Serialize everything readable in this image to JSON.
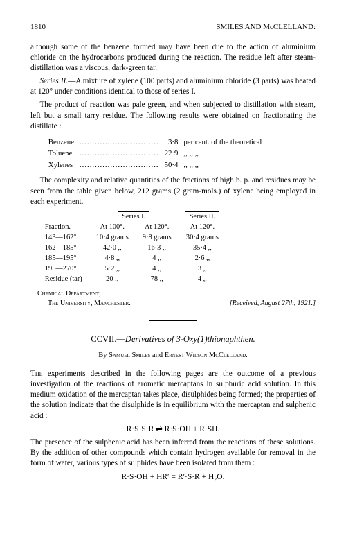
{
  "page_number": "1810",
  "running_head": "SMILES AND McCLELLAND:",
  "para1": "although some of the benzene formed may have been due to the action of aluminium chloride on the hydrocarbons produced during the reaction. The residue left after steam-distillation was a viscous, dark-green tar.",
  "para2_prefix_italic": "Series II.",
  "para2_rest": "—A mixture of xylene (100 parts) and aluminium chloride (3 parts) was heated at 120° under conditions identical to those of series I.",
  "para3": "The product of reaction was pale green, and when subjected to distillation with steam, left but a small tarry residue. The following results were obtained on fractionating the distillate :",
  "distillate": {
    "rows": [
      {
        "label": "Benzene",
        "value": "3·8",
        "suffix": "per cent. of the theoretical"
      },
      {
        "label": "Toluene",
        "value": "22·9",
        "suffix": ",,          ,,          ,,"
      },
      {
        "label": "Xylenes",
        "value": "50·4",
        "suffix": ",,          ,,          ,,"
      }
    ]
  },
  "para4": "The complexity and relative quantities of the fractions of high b. p. and residues may be seen from the table given below, 212 grams (2 gram-mols.) of xylene being employed in each experiment.",
  "table": {
    "group1": "Series I.",
    "group2": "Series II.",
    "col_fraction": "Fraction.",
    "col_a": "At 100°.",
    "col_b": "At 120°.",
    "col_c": "At 120°.",
    "rows": [
      {
        "f": "143—162°",
        "a": "10·4 grams",
        "b": "9·8 grams",
        "c": "30·4 grams"
      },
      {
        "f": "162—185°",
        "a": "42·0    ,,",
        "b": "16·3    ,,",
        "c": "35·4    ,,"
      },
      {
        "f": "185—195°",
        "a": "4·8    ,,",
        "b": "4    ,,",
        "c": "2·6    ,,"
      },
      {
        "f": "195—270°",
        "a": "5·2    ,,",
        "b": "4    ,,",
        "c": "3    ,,"
      },
      {
        "f": "Residue (tar)",
        "a": "20    ,,",
        "b": "78    ,,",
        "c": "4    ,,"
      }
    ]
  },
  "affiliation_left1": "Chemical Department,",
  "affiliation_left2": "The University, Manchester.",
  "affiliation_right": "[Received, August 27th, 1921.]",
  "article_roman": "CCVII.—",
  "article_title_italic": "Derivatives of 3-Oxy(1)thionaphthen.",
  "authors_by": "By ",
  "author1": "Samuel Smiles",
  "authors_and": " and ",
  "author2": "Ernest Wilson McClelland.",
  "body1_lead": "The",
  "body1_rest": " experiments described in the following pages are the outcome of a previous investigation of the reactions of aromatic mercaptans in sulphuric acid solution. In this medium oxidation of the mercaptan takes place, disulphides being formed; the properties of the solution indicate that the disulphide is in equilibrium with the mercaptan and sulphenic acid :",
  "equation1": "R·S·S·R ⇌ R·S·OH + R·SH.",
  "body2": "The presence of the sulphenic acid has been inferred from the reactions of these solutions. By the addition of other compounds which contain hydrogen available for removal in the form of water, various types of sulphides have been isolated from them :",
  "equation2": "R·S·OH + HR′ = R′·S·R + H₂O."
}
